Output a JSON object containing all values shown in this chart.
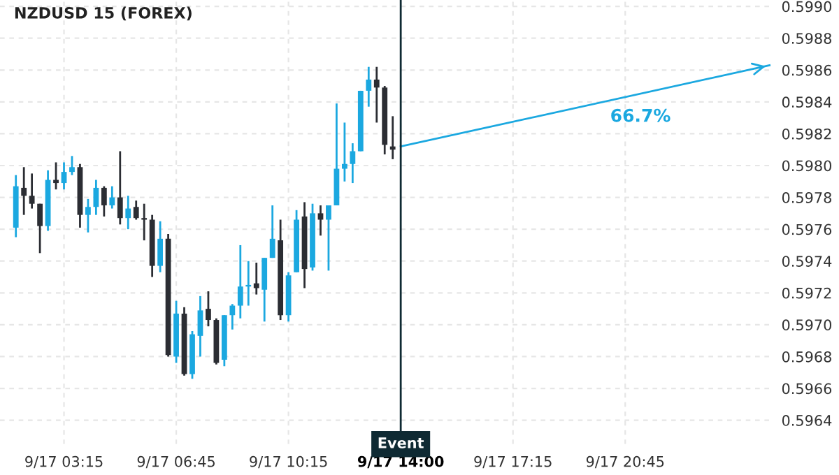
{
  "chart_data": {
    "type": "candlestick",
    "title": "NZDUSD 15 (FOREX)",
    "categories": [
      null,
      null,
      null,
      null,
      null,
      null,
      "9/17 03:15",
      null,
      null,
      null,
      null,
      null,
      null,
      null,
      null,
      null,
      null,
      null,
      null,
      null,
      "9/17 06:45",
      null,
      null,
      null,
      null,
      null,
      null,
      null,
      null,
      null,
      null,
      null,
      null,
      null,
      "9/17 10:15",
      null,
      null,
      null,
      null,
      null,
      null,
      null,
      null,
      null,
      null,
      null,
      null,
      null,
      "9/17 14:00",
      null,
      null,
      null,
      null,
      null,
      null,
      null,
      null,
      null,
      null,
      null,
      null,
      null,
      "9/17 17:15",
      null,
      null,
      null,
      null,
      null,
      null,
      null,
      null,
      null,
      null,
      null,
      null,
      null,
      "9/17 20:45",
      null,
      null,
      null,
      null,
      null,
      null,
      null,
      null,
      null,
      null,
      null,
      null,
      null,
      null,
      null,
      null,
      null,
      null
    ],
    "colors": [
      "#1ba8e0",
      "#2b2d33",
      "#2b2d33",
      "#2b2d33",
      "#1ba8e0",
      "#2b2d33",
      "#1ba8e0",
      "#1ba8e0",
      "#2b2d33",
      "#1ba8e0",
      "#1ba8e0",
      "#2b2d33",
      "#1ba8e0",
      "#2b2d33",
      "#1ba8e0",
      "#2b2d33",
      "#2b2d33",
      "#2b2d33",
      "#1ba8e0",
      "#2b2d33",
      "#1ba8e0",
      "#2b2d33",
      "#1ba8e0",
      "#1ba8e0",
      "#2b2d33",
      "#2b2d33",
      "#1ba8e0",
      "#1ba8e0",
      "#1ba8e0",
      "#1ba8e0",
      "#2b2d33",
      "#1ba8e0",
      "#1ba8e0",
      "#2b2d33",
      "#1ba8e0",
      "#1ba8e0",
      "#2b2d33",
      "#1ba8e0",
      "#2b2d33",
      "#1ba8e0",
      "#1ba8e0",
      "#1ba8e0",
      "#1ba8e0",
      "#1ba8e0",
      "#1ba8e0",
      "#2b2d33",
      "#2b2d33",
      "#2b2d33",
      null,
      null,
      null,
      null,
      null,
      null,
      null,
      null,
      null,
      null,
      null,
      null,
      null,
      null,
      null,
      null,
      null,
      null,
      null,
      null,
      null,
      null,
      null,
      null,
      null,
      null,
      null,
      null,
      null,
      null,
      null,
      null,
      null,
      null,
      null,
      null,
      null,
      null,
      null,
      null,
      null,
      null,
      null,
      null,
      null,
      null,
      null
    ],
    "ohlc": [
      [
        0.59761,
        0.59794,
        0.59755,
        0.59787
      ],
      [
        0.59786,
        0.59799,
        0.59769,
        0.59781
      ],
      [
        0.59781,
        0.59795,
        0.59773,
        0.59776
      ],
      [
        0.59776,
        0.59776,
        0.59745,
        0.59762
      ],
      [
        0.59762,
        0.59797,
        0.59759,
        0.59791
      ],
      [
        0.59791,
        0.59802,
        0.59785,
        0.59789
      ],
      [
        0.59789,
        0.59802,
        0.59785,
        0.59796
      ],
      [
        0.59796,
        0.59806,
        0.59794,
        0.59799
      ],
      [
        0.59799,
        0.59801,
        0.59761,
        0.59769
      ],
      [
        0.59769,
        0.59779,
        0.59758,
        0.59774
      ],
      [
        0.59774,
        0.59791,
        0.59769,
        0.59786
      ],
      [
        0.59786,
        0.59787,
        0.59768,
        0.59775
      ],
      [
        0.59775,
        0.59787,
        0.59773,
        0.5978
      ],
      [
        0.5978,
        0.59809,
        0.59763,
        0.59767
      ],
      [
        0.59767,
        0.59781,
        0.5976,
        0.59773
      ],
      [
        0.59774,
        0.59778,
        0.59766,
        0.59767
      ],
      [
        0.59767,
        0.59776,
        0.59753,
        0.59766
      ],
      [
        0.59766,
        0.59769,
        0.5973,
        0.59737
      ],
      [
        0.59737,
        0.59765,
        0.59733,
        0.59754
      ],
      [
        0.59754,
        0.59757,
        0.5968,
        0.59681
      ],
      [
        0.5968,
        0.59715,
        0.59676,
        0.59707
      ],
      [
        0.59707,
        0.59711,
        0.59668,
        0.59669
      ],
      [
        0.59669,
        0.59696,
        0.59666,
        0.59694
      ],
      [
        0.59693,
        0.59718,
        0.5968,
        0.59709
      ],
      [
        0.5971,
        0.59721,
        0.59699,
        0.59703
      ],
      [
        0.59703,
        0.59704,
        0.59675,
        0.59676
      ],
      [
        0.59678,
        0.59706,
        0.59674,
        0.59706
      ],
      [
        0.59706,
        0.59713,
        0.59697,
        0.59712
      ],
      [
        0.59712,
        0.5975,
        0.59704,
        0.59724
      ],
      [
        0.59724,
        0.5974,
        0.59712,
        0.59725
      ],
      [
        0.59726,
        0.59739,
        0.59719,
        0.59723
      ],
      [
        0.59722,
        0.59742,
        0.59702,
        0.59742
      ],
      [
        0.59742,
        0.59775,
        0.59742,
        0.59754
      ],
      [
        0.59753,
        0.59766,
        0.59703,
        0.59706
      ],
      [
        0.59706,
        0.59733,
        0.59702,
        0.59731
      ],
      [
        0.59733,
        0.59772,
        0.59733,
        0.59766
      ],
      [
        0.59768,
        0.59777,
        0.59723,
        0.59735
      ],
      [
        0.59736,
        0.59776,
        0.59734,
        0.5977
      ],
      [
        0.5977,
        0.59775,
        0.59756,
        0.59766
      ],
      [
        0.59766,
        0.59775,
        0.59734,
        0.59775
      ],
      [
        0.59775,
        0.59839,
        0.59775,
        0.59798
      ],
      [
        0.59798,
        0.59827,
        0.5979,
        0.59801
      ],
      [
        0.59801,
        0.59814,
        0.59789,
        0.59809
      ],
      [
        0.59809,
        0.59847,
        0.59809,
        0.59847
      ],
      [
        0.59847,
        0.59862,
        0.59837,
        0.59854
      ],
      [
        0.59854,
        0.59862,
        0.59827,
        0.59849
      ],
      [
        0.59849,
        0.5985,
        0.59807,
        0.59813
      ],
      [
        0.59812,
        0.59831,
        0.59804,
        0.5981
      ],
      null,
      null,
      null,
      null,
      null,
      null,
      null,
      null,
      null,
      null,
      null,
      null,
      null,
      null,
      null,
      null,
      null,
      null,
      null,
      null,
      null,
      null,
      null,
      null,
      null,
      null,
      null,
      null,
      null,
      null,
      null,
      null,
      null,
      null,
      null,
      null,
      null,
      null,
      null,
      null,
      null,
      null,
      null,
      null,
      null,
      null,
      null
    ],
    "series": [
      {
        "type": "line",
        "color": "#1ba8e0",
        "values": [
          null,
          null,
          null,
          null,
          null,
          null,
          null,
          null,
          null,
          null,
          null,
          null,
          null,
          null,
          null,
          null,
          null,
          null,
          null,
          null,
          null,
          null,
          null,
          null,
          null,
          null,
          null,
          null,
          null,
          null,
          null,
          null,
          null,
          null,
          null,
          null,
          null,
          null,
          null,
          null,
          null,
          null,
          null,
          null,
          null,
          null,
          null,
          null,
          0.59812,
          null,
          null,
          null,
          null,
          null,
          null,
          null,
          null,
          null,
          null,
          null,
          null,
          null,
          null,
          null,
          null,
          null,
          null,
          null,
          null,
          null,
          null,
          null,
          null,
          null,
          null,
          null,
          null,
          null,
          null,
          null,
          null,
          null,
          null,
          null,
          null,
          null,
          null,
          null,
          null,
          null,
          null,
          null,
          null,
          null,
          0.59863
        ]
      }
    ],
    "annotations": [
      "66.7%"
    ],
    "ref_lines": [
      {
        "axis": "x",
        "value": "9/17 14:00",
        "label": "Event",
        "color": "#0f2a33"
      }
    ],
    "ylim": [
      0.59625,
      0.59904
    ],
    "yticks": [
      0.5964,
      0.5966,
      0.5968,
      {
        "value": 0.597,
        "label": "0.5970"
      },
      0.5972,
      0.5974,
      0.5976,
      0.5978,
      {
        "value": 0.598,
        "label": "0.5980"
      },
      0.5982,
      0.5984,
      0.5986,
      0.5988,
      {
        "value": 0.599,
        "label": "0.5990"
      }
    ],
    "grid": true
  }
}
